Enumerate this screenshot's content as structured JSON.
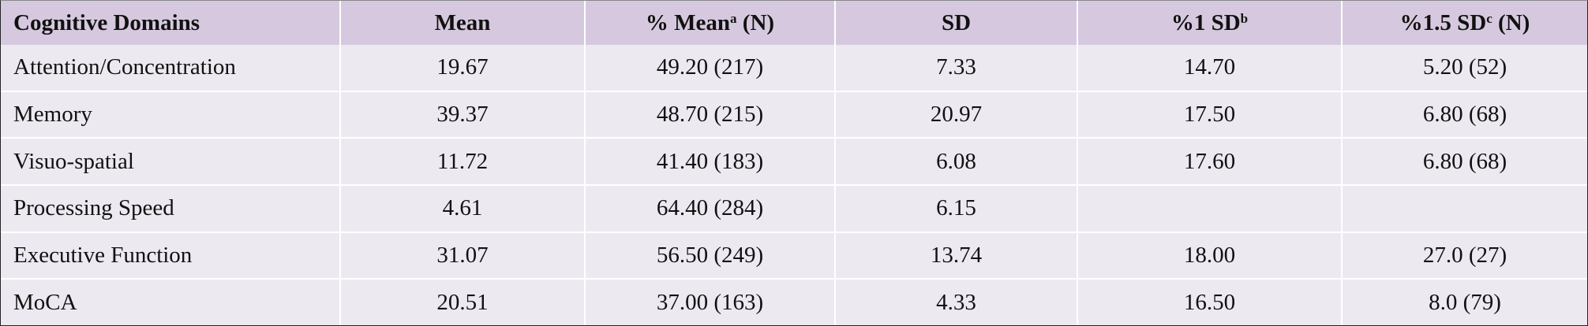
{
  "table": {
    "header": [
      {
        "text": "Cognitive Domains"
      },
      {
        "text": "Mean"
      },
      {
        "text": "% Mean",
        "sup": "a",
        "after": " (N)"
      },
      {
        "text": "SD"
      },
      {
        "text": "%1 SD",
        "sup": "b"
      },
      {
        "text": "%1.5 SD",
        "sup": "c",
        "after": " (N)"
      }
    ],
    "rows": [
      [
        "Attention/Concentration",
        "19.67",
        "49.20 (217)",
        "7.33",
        "14.70",
        "5.20 (52)"
      ],
      [
        "Memory",
        "39.37",
        "48.70 (215)",
        "20.97",
        "17.50",
        "6.80 (68)"
      ],
      [
        "Visuo-spatial",
        "11.72",
        "41.40 (183)",
        "6.08",
        "17.60",
        "6.80 (68)"
      ],
      [
        "Processing Speed",
        "4.61",
        "64.40 (284)",
        "6.15",
        null,
        null
      ],
      [
        "Executive Function",
        "31.07",
        "56.50 (249)",
        "13.74",
        "18.00",
        "27.0 (27)"
      ],
      [
        "MoCA",
        "20.51",
        "37.00 (163)",
        "4.33",
        "16.50",
        "8.0 (79)"
      ]
    ]
  }
}
